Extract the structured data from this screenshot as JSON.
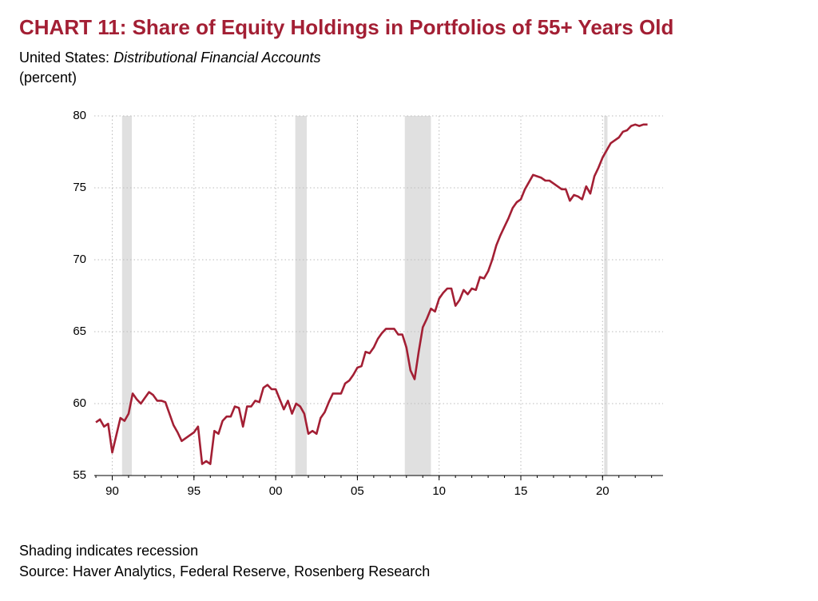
{
  "chart_data": {
    "type": "line",
    "title": "CHART 11: Share of Equity Holdings in Portfolios of 55+ Years Old",
    "subtitle_prefix": "United States:",
    "subtitle_italic": "Distributional Financial Accounts",
    "unit_label": "(percent)",
    "notes": [
      "Shading indicates recession",
      "Source: Haver Analytics, Federal Reserve, Rosenberg Research"
    ],
    "x": [
      1989.0,
      1989.25,
      1989.5,
      1989.75,
      1990.0,
      1990.25,
      1990.5,
      1990.75,
      1991.0,
      1991.25,
      1991.5,
      1991.75,
      1992.0,
      1992.25,
      1992.5,
      1992.75,
      1993.0,
      1993.25,
      1993.5,
      1993.75,
      1994.0,
      1994.25,
      1994.5,
      1994.75,
      1995.0,
      1995.25,
      1995.5,
      1995.75,
      1996.0,
      1996.25,
      1996.5,
      1996.75,
      1997.0,
      1997.25,
      1997.5,
      1997.75,
      1998.0,
      1998.25,
      1998.5,
      1998.75,
      1999.0,
      1999.25,
      1999.5,
      1999.75,
      2000.0,
      2000.25,
      2000.5,
      2000.75,
      2001.0,
      2001.25,
      2001.5,
      2001.75,
      2002.0,
      2002.25,
      2002.5,
      2002.75,
      2003.0,
      2003.25,
      2003.5,
      2003.75,
      2004.0,
      2004.25,
      2004.5,
      2004.75,
      2005.0,
      2005.25,
      2005.5,
      2005.75,
      2006.0,
      2006.25,
      2006.5,
      2006.75,
      2007.0,
      2007.25,
      2007.5,
      2007.75,
      2008.0,
      2008.25,
      2008.5,
      2008.75,
      2009.0,
      2009.25,
      2009.5,
      2009.75,
      2010.0,
      2010.25,
      2010.5,
      2010.75,
      2011.0,
      2011.25,
      2011.5,
      2011.75,
      2012.0,
      2012.25,
      2012.5,
      2012.75,
      2013.0,
      2013.25,
      2013.5,
      2013.75,
      2014.0,
      2014.25,
      2014.5,
      2014.75,
      2015.0,
      2015.25,
      2015.5,
      2015.75,
      2016.0,
      2016.25,
      2016.5,
      2016.75,
      2017.0,
      2017.25,
      2017.5,
      2017.75,
      2018.0,
      2018.25,
      2018.5,
      2018.75,
      2019.0,
      2019.25,
      2019.5,
      2019.75,
      2020.0,
      2020.25,
      2020.5,
      2020.75,
      2021.0,
      2021.25,
      2021.5,
      2021.75,
      2022.0,
      2022.25,
      2022.5,
      2022.75
    ],
    "series": [
      {
        "color": "#a31f34",
        "values": [
          58.7,
          58.9,
          58.4,
          58.6,
          56.6,
          57.8,
          59.0,
          58.8,
          59.3,
          60.7,
          60.3,
          60.0,
          60.4,
          60.8,
          60.6,
          60.2,
          60.2,
          60.1,
          59.3,
          58.5,
          58.0,
          57.4,
          57.6,
          57.8,
          58.0,
          58.4,
          55.8,
          56.0,
          55.8,
          58.1,
          57.9,
          58.8,
          59.1,
          59.1,
          59.8,
          59.7,
          58.4,
          59.8,
          59.8,
          60.2,
          60.1,
          61.1,
          61.3,
          61.0,
          61.0,
          60.3,
          59.6,
          60.2,
          59.3,
          60.0,
          59.8,
          59.3,
          57.9,
          58.1,
          57.9,
          59.0,
          59.4,
          60.1,
          60.7,
          60.7,
          60.7,
          61.4,
          61.6,
          62.0,
          62.5,
          62.6,
          63.6,
          63.5,
          63.9,
          64.5,
          64.9,
          65.2,
          65.2,
          65.2,
          64.8,
          64.8,
          63.9,
          62.3,
          61.7,
          63.6,
          65.3,
          65.9,
          66.6,
          66.4,
          67.3,
          67.7,
          68.0,
          68.0,
          66.8,
          67.2,
          67.9,
          67.6,
          68.0,
          67.9,
          68.8,
          68.7,
          69.2,
          70.0,
          71.0,
          71.7,
          72.3,
          72.9,
          73.6,
          74.0,
          74.2,
          74.9,
          75.4,
          75.9,
          75.8,
          75.7,
          75.5,
          75.5,
          75.3,
          75.1,
          74.9,
          74.9,
          74.1,
          74.5,
          74.4,
          74.2,
          75.1,
          74.6,
          75.8,
          76.4,
          77.1,
          77.6,
          78.1,
          78.3,
          78.5,
          78.9,
          79.0,
          79.3,
          79.4,
          79.3,
          79.4,
          79.4
        ]
      }
    ],
    "recessions": [
      [
        1990.6,
        1991.2
      ],
      [
        2001.2,
        2001.9
      ],
      [
        2007.9,
        2009.5
      ],
      [
        2020.1,
        2020.3
      ]
    ],
    "recession_color": "#e0e0e0",
    "xlim": [
      1988.9,
      2023.7
    ],
    "xticks": [
      {
        "value": 1990,
        "label": "90"
      },
      {
        "value": 1995,
        "label": "95"
      },
      {
        "value": 2000,
        "label": "00"
      },
      {
        "value": 2005,
        "label": "05"
      },
      {
        "value": 2010,
        "label": "10"
      },
      {
        "value": 2015,
        "label": "15"
      },
      {
        "value": 2020,
        "label": "20"
      }
    ],
    "ylim": [
      55,
      80
    ],
    "yticks": [
      55,
      60,
      65,
      70,
      75,
      80
    ],
    "grid": true
  }
}
